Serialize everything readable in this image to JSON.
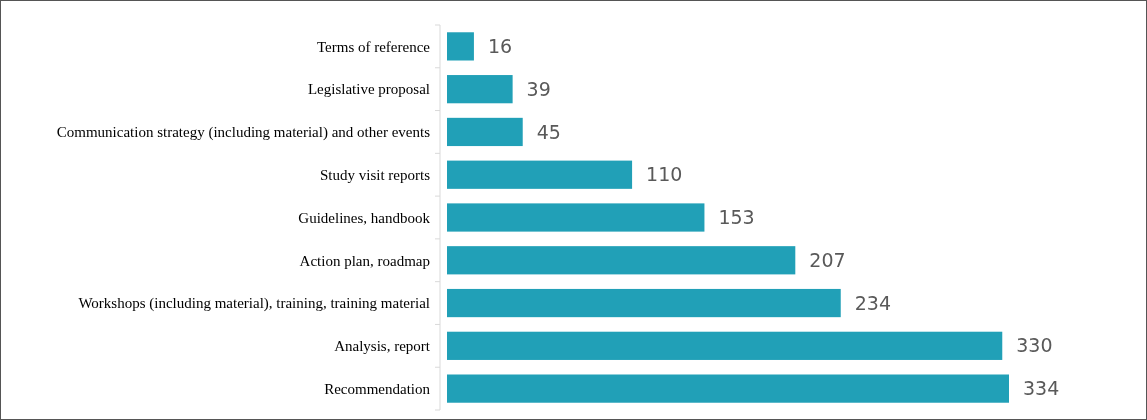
{
  "chart_data": {
    "type": "bar",
    "orientation": "horizontal",
    "categories": [
      "Terms of reference",
      "Legislative proposal",
      "Communication strategy (including material) and other events",
      "Study visit reports",
      "Guidelines, handbook",
      "Action plan, roadmap",
      "Workshops (including material), training, training material",
      "Analysis, report",
      "Recommendation"
    ],
    "values": [
      16,
      39,
      45,
      110,
      153,
      207,
      234,
      330,
      334
    ],
    "color": "#21a0b7",
    "data_labels": true
  }
}
